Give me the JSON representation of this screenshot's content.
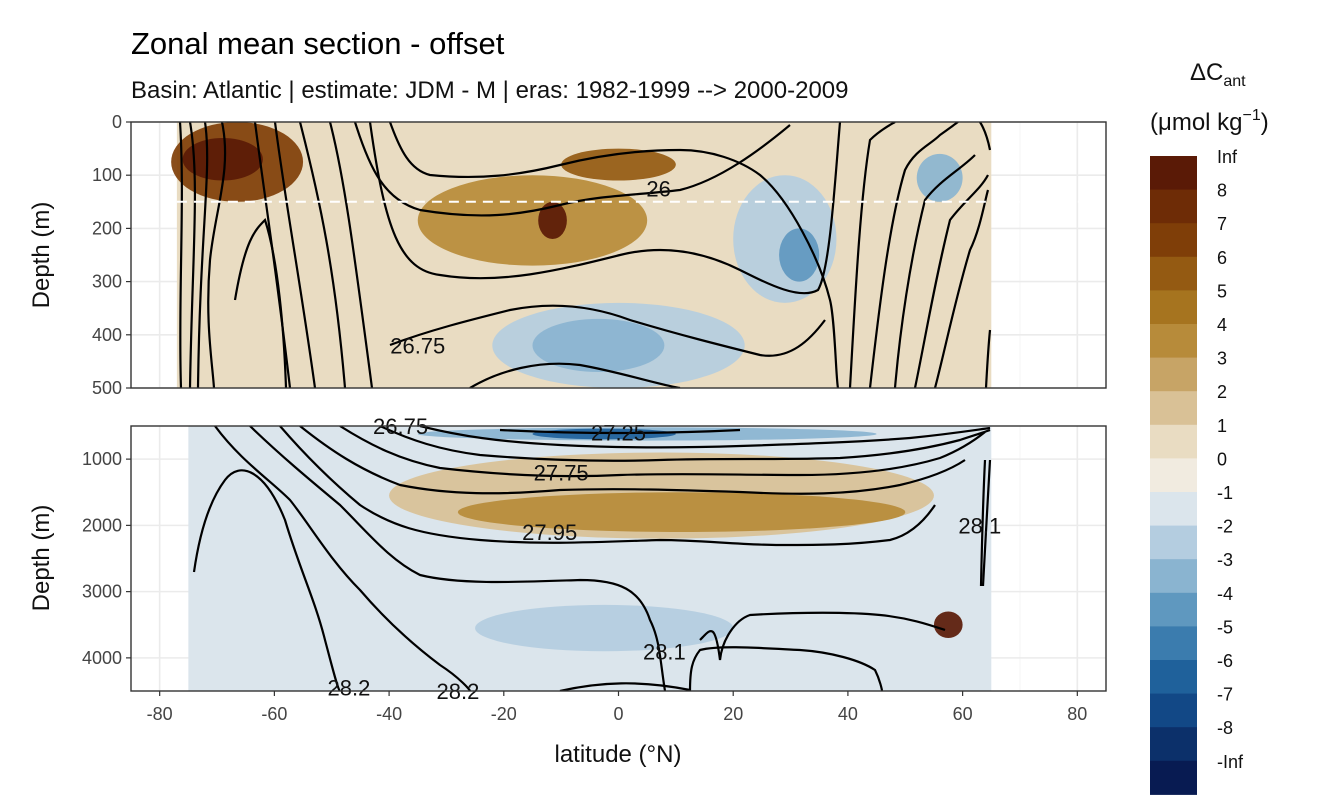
{
  "chart_data": {
    "type": "heatmap",
    "title": "Zonal mean section - offset",
    "subtitle": "Basin: Atlantic | estimate: JDM - M | eras: 1982-1999 --> 2000-2009",
    "xlabel": "latitude (°N)",
    "ylabel": "Depth (m)",
    "xlim": [
      -85,
      85
    ],
    "x_ticks": [
      -80,
      -60,
      -40,
      -20,
      0,
      20,
      40,
      60,
      80
    ],
    "x_tick_labels": [
      "-80",
      "-60",
      "-40",
      "-20",
      "0",
      "20",
      "40",
      "60",
      "80"
    ],
    "panels": [
      {
        "name": "upper",
        "ylim": [
          0,
          500
        ],
        "y_ticks": [
          0,
          100,
          200,
          300,
          400,
          500
        ],
        "y_tick_labels": [
          "0",
          "100",
          "200",
          "300",
          "400",
          "500"
        ],
        "reference_depth": 150
      },
      {
        "name": "lower",
        "ylim": [
          500,
          4500
        ],
        "y_ticks": [
          1000,
          2000,
          3000,
          4000
        ],
        "y_tick_labels": [
          "1000",
          "2000",
          "3000",
          "4000"
        ]
      }
    ],
    "fill_regions": [
      {
        "panel": "upper",
        "lat": [
          -77,
          65
        ],
        "depth": [
          0,
          500
        ],
        "level": "0 to 1"
      },
      {
        "panel": "upper",
        "lat": [
          -78,
          -55
        ],
        "depth": [
          0,
          150
        ],
        "level": "6 to 7"
      },
      {
        "panel": "upper",
        "lat": [
          -76,
          -62
        ],
        "depth": [
          30,
          110
        ],
        "level": "8 to Inf"
      },
      {
        "panel": "upper",
        "lat": [
          -35,
          5
        ],
        "depth": [
          100,
          270
        ],
        "level": "3 to 4"
      },
      {
        "panel": "upper",
        "lat": [
          -14,
          -9
        ],
        "depth": [
          150,
          220
        ],
        "level": "8 to Inf"
      },
      {
        "panel": "upper",
        "lat": [
          -10,
          10
        ],
        "depth": [
          50,
          110
        ],
        "level": "5 to 6"
      },
      {
        "panel": "upper",
        "lat": [
          20,
          38
        ],
        "depth": [
          100,
          340
        ],
        "level": "-2 to -1"
      },
      {
        "panel": "upper",
        "lat": [
          28,
          35
        ],
        "depth": [
          200,
          300
        ],
        "level": "-4 to -3"
      },
      {
        "panel": "upper",
        "lat": [
          52,
          60
        ],
        "depth": [
          60,
          150
        ],
        "level": "-3 to -2"
      },
      {
        "panel": "upper",
        "lat": [
          -22,
          22
        ],
        "depth": [
          340,
          500
        ],
        "level": "-2 to -1"
      },
      {
        "panel": "upper",
        "lat": [
          -15,
          8
        ],
        "depth": [
          370,
          470
        ],
        "level": "-3 to -2"
      },
      {
        "panel": "lower",
        "lat": [
          -75,
          65
        ],
        "depth": [
          500,
          4500
        ],
        "level": "-1 to 0"
      },
      {
        "panel": "lower",
        "lat": [
          -40,
          55
        ],
        "depth": [
          900,
          2200
        ],
        "level": "1 to 2"
      },
      {
        "panel": "lower",
        "lat": [
          -28,
          50
        ],
        "depth": [
          1500,
          2100
        ],
        "level": "3 to 4"
      },
      {
        "panel": "lower",
        "lat": [
          -35,
          45
        ],
        "depth": [
          520,
          720
        ],
        "level": "-3 to -2"
      },
      {
        "panel": "lower",
        "lat": [
          -15,
          10
        ],
        "depth": [
          540,
          700
        ],
        "level": "-6 to -5"
      },
      {
        "panel": "lower",
        "lat": [
          -25,
          20
        ],
        "depth": [
          3200,
          3900
        ],
        "level": "-2 to -1"
      },
      {
        "panel": "lower",
        "lat": [
          55,
          60
        ],
        "depth": [
          3300,
          3700
        ],
        "level": "8 to Inf"
      }
    ],
    "contour_labels": [
      {
        "text": "26",
        "lat": 7,
        "depth": 125
      },
      {
        "text": "26.75",
        "lat": -35,
        "depth": 420
      },
      {
        "text": "26.75",
        "lat": -38,
        "depth": 500
      },
      {
        "text": "27.25",
        "lat": 0,
        "depth": 600
      },
      {
        "text": "27.75",
        "lat": -10,
        "depth": 1200
      },
      {
        "text": "27.95",
        "lat": -12,
        "depth": 2100
      },
      {
        "text": "28.1",
        "lat": 8,
        "depth": 3900
      },
      {
        "text": "28.2",
        "lat": -47,
        "depth": 4450
      },
      {
        "text": "28.2",
        "lat": -28,
        "depth": 4500
      },
      {
        "text": "28.1",
        "lat": 63,
        "depth": 2000
      }
    ],
    "legend": {
      "title": "ΔC",
      "title_subscript": "ant",
      "unit_open": "(μmol kg",
      "unit_superscript": "−1",
      "unit_close": ")",
      "labels": [
        "Inf",
        "8",
        "7",
        "6",
        "5",
        "4",
        "3",
        "2",
        "1",
        "0",
        "-1",
        "-2",
        "-3",
        "-4",
        "-5",
        "-6",
        "-7",
        "-8",
        "-Inf"
      ],
      "colors": [
        "#5a1a06",
        "#6e2c06",
        "#7f3e08",
        "#945a12",
        "#a6741f",
        "#b78b3a",
        "#c7a466",
        "#d9c196",
        "#e9dcc2",
        "#f1ebe0",
        "#dbe5ec",
        "#b4cde0",
        "#8ab4d0",
        "#5f98bf",
        "#3b7cae",
        "#1f619b",
        "#124886",
        "#0c306a",
        "#081b52"
      ]
    }
  }
}
